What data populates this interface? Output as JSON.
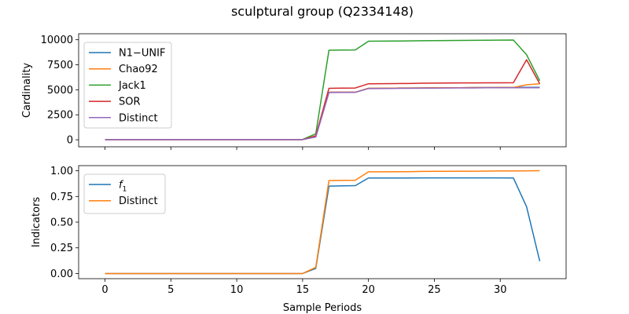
{
  "chart_data": [
    {
      "type": "line",
      "title": "sculptural group (Q2334148)",
      "xlabel": "",
      "ylabel": "Cardinality",
      "xlim": [
        -2,
        35
      ],
      "ylim": [
        -700,
        10600
      ],
      "xticks": [
        0,
        5,
        10,
        15,
        20,
        25,
        30
      ],
      "yticks": [
        0,
        2500,
        5000,
        7500,
        10000
      ],
      "xtick_labels_visible": false,
      "legend": "upper-left",
      "grid": false,
      "x": [
        0,
        1,
        2,
        3,
        4,
        5,
        6,
        7,
        8,
        9,
        10,
        11,
        12,
        13,
        14,
        15,
        16,
        17,
        18,
        19,
        20,
        21,
        22,
        23,
        24,
        25,
        26,
        27,
        28,
        29,
        30,
        31,
        32,
        33
      ],
      "series": [
        {
          "name": "N1−UNIF",
          "color": "#1f77b4",
          "values": [
            20,
            20,
            20,
            20,
            20,
            20,
            20,
            20,
            20,
            20,
            20,
            20,
            20,
            20,
            20,
            20,
            300,
            4750,
            4760,
            4760,
            5150,
            5160,
            5170,
            5180,
            5190,
            5200,
            5210,
            5210,
            5220,
            5220,
            5230,
            5230,
            5240,
            5240
          ]
        },
        {
          "name": "Chao92",
          "color": "#ff7f0e",
          "values": [
            20,
            20,
            20,
            20,
            20,
            20,
            20,
            20,
            20,
            20,
            20,
            20,
            20,
            20,
            20,
            20,
            300,
            4750,
            4760,
            4760,
            5150,
            5160,
            5170,
            5180,
            5190,
            5200,
            5210,
            5210,
            5220,
            5220,
            5230,
            5230,
            5500,
            5600
          ]
        },
        {
          "name": "Jack1",
          "color": "#2ca02c",
          "values": [
            30,
            30,
            30,
            30,
            30,
            30,
            30,
            30,
            30,
            30,
            30,
            30,
            30,
            30,
            30,
            30,
            600,
            8950,
            8970,
            8980,
            9850,
            9860,
            9870,
            9880,
            9900,
            9910,
            9920,
            9930,
            9940,
            9950,
            9960,
            9970,
            8500,
            5900
          ]
        },
        {
          "name": "SOR",
          "color": "#d62728",
          "values": [
            20,
            20,
            20,
            20,
            20,
            20,
            20,
            20,
            20,
            20,
            20,
            20,
            20,
            20,
            20,
            20,
            400,
            5150,
            5170,
            5180,
            5600,
            5610,
            5620,
            5630,
            5660,
            5670,
            5680,
            5690,
            5690,
            5700,
            5700,
            5710,
            8000,
            5600
          ]
        },
        {
          "name": "Distinct",
          "color": "#9467bd",
          "values": [
            20,
            20,
            20,
            20,
            20,
            20,
            20,
            20,
            20,
            20,
            20,
            20,
            20,
            20,
            20,
            20,
            280,
            4720,
            4730,
            4740,
            5120,
            5130,
            5140,
            5150,
            5160,
            5170,
            5180,
            5190,
            5190,
            5200,
            5200,
            5210,
            5210,
            5210
          ]
        }
      ]
    },
    {
      "type": "line",
      "title": "",
      "xlabel": "Sample Periods",
      "ylabel": "Indicators",
      "xlim": [
        -2,
        35
      ],
      "ylim": [
        -0.05,
        1.05
      ],
      "xticks": [
        0,
        5,
        10,
        15,
        20,
        25,
        30
      ],
      "yticks": [
        0.0,
        0.25,
        0.5,
        0.75,
        1.0
      ],
      "ytick_labels": [
        "0.00",
        "0.25",
        "0.50",
        "0.75",
        "1.00"
      ],
      "legend": "upper-left",
      "grid": false,
      "x": [
        0,
        1,
        2,
        3,
        4,
        5,
        6,
        7,
        8,
        9,
        10,
        11,
        12,
        13,
        14,
        15,
        16,
        17,
        18,
        19,
        20,
        21,
        22,
        23,
        24,
        25,
        26,
        27,
        28,
        29,
        30,
        31,
        32,
        33
      ],
      "series": [
        {
          "name": "f1",
          "color": "#1f77b4",
          "values": [
            0.0,
            0.0,
            0.0,
            0.0,
            0.0,
            0.0,
            0.0,
            0.0,
            0.0,
            0.0,
            0.0,
            0.0,
            0.0,
            0.0,
            0.0,
            0.0,
            0.05,
            0.85,
            0.853,
            0.855,
            0.93,
            0.93,
            0.93,
            0.93,
            0.931,
            0.931,
            0.931,
            0.931,
            0.931,
            0.931,
            0.931,
            0.93,
            0.65,
            0.12
          ]
        },
        {
          "name": "Distinct",
          "color": "#ff7f0e",
          "values": [
            0.0,
            0.0,
            0.0,
            0.0,
            0.0,
            0.0,
            0.0,
            0.0,
            0.0,
            0.0,
            0.0,
            0.0,
            0.0,
            0.0,
            0.0,
            0.0,
            0.06,
            0.905,
            0.907,
            0.908,
            0.99,
            0.99,
            0.991,
            0.991,
            0.994,
            0.995,
            0.995,
            0.996,
            0.996,
            0.997,
            0.998,
            0.998,
            0.999,
            1.0
          ]
        }
      ]
    }
  ]
}
